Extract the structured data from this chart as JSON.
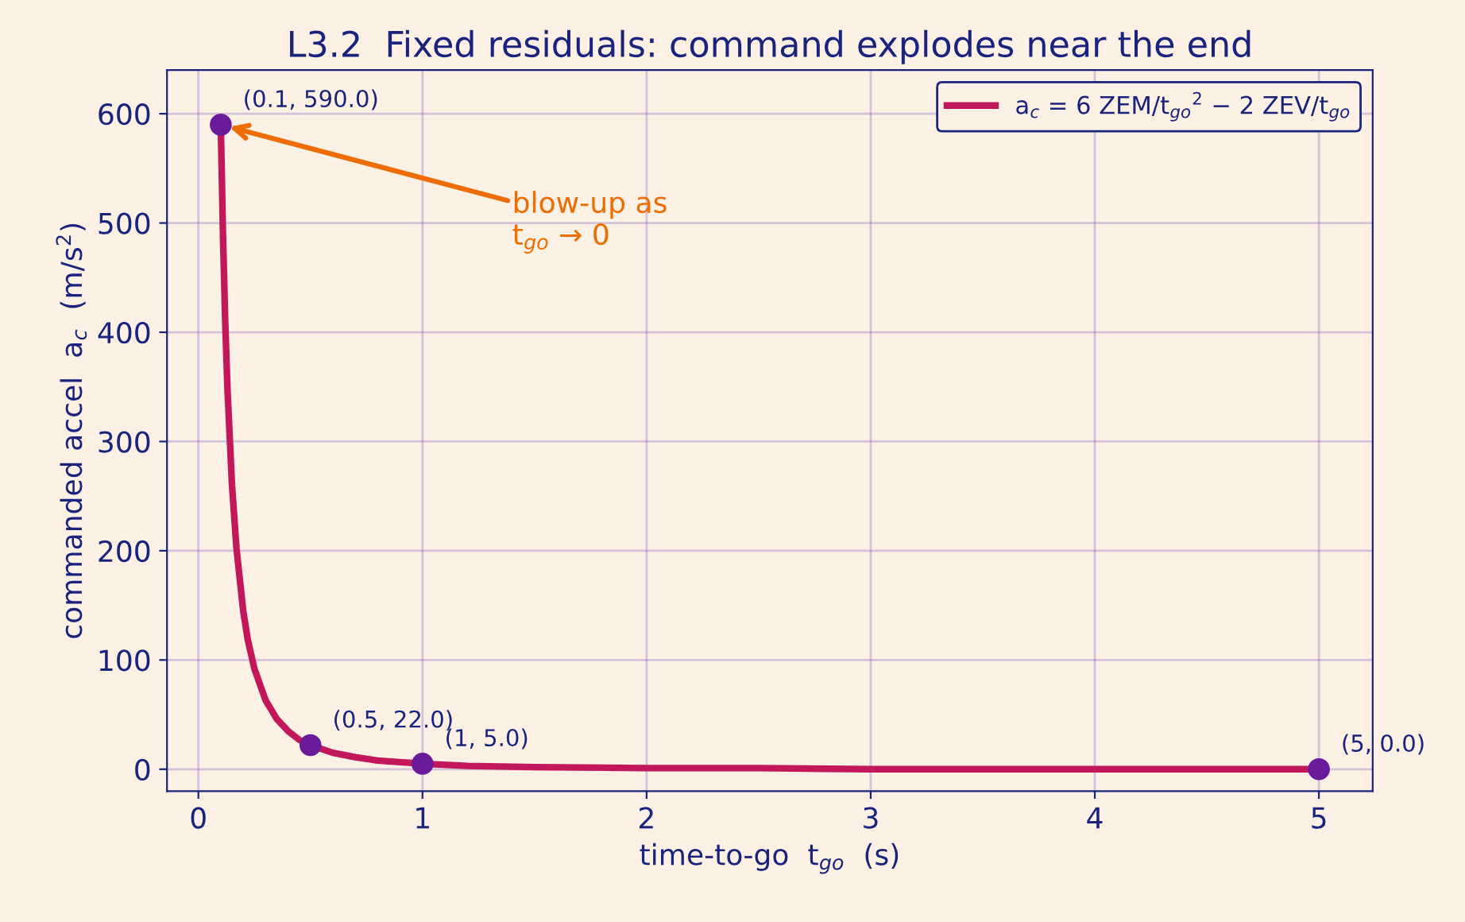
{
  "chart_data": {
    "type": "line",
    "title": "L3.2  Fixed residuals: command explodes near the end",
    "xlabel": "time-to-go  t$_{go}$  (s)",
    "ylabel": "commanded accel  a$_{c}$  (m/s$^{2}$)",
    "series": [
      {
        "name": "a$_{c}$ = 6 ZEM/t$_{go}$$^{2}$ − 2 ZEV/t$_{go}$",
        "color": "#c2185b",
        "x": [
          0.1,
          0.11,
          0.12,
          0.13,
          0.15,
          0.17,
          0.2,
          0.22,
          0.25,
          0.3,
          0.35,
          0.4,
          0.45,
          0.5,
          0.6,
          0.7,
          0.8,
          1,
          1.2,
          1.5,
          2,
          2.5,
          3,
          4,
          5
        ],
        "values": [
          590,
          487,
          408,
          347,
          260,
          202,
          145,
          119,
          92,
          63,
          46,
          35,
          27,
          22,
          15,
          11,
          8,
          5,
          3,
          2,
          1,
          1,
          0,
          0,
          0
        ]
      },
      {
        "type": "scatter",
        "marker": "circle",
        "color": "#6a1b9a",
        "x": [
          0.1,
          0.5,
          1,
          5
        ],
        "values": [
          590,
          22,
          5,
          0
        ],
        "value_labels": [
          "(0.1, 590.0)",
          "(0.5, 22.0)",
          "(1, 5.0)",
          "(5, 0.0)"
        ]
      }
    ],
    "annotations": [
      {
        "text": "blow-up as\nt$_{go}$ → 0",
        "x": 0.1,
        "y": 590
      }
    ],
    "xlim": [
      -0.14,
      5.24
    ],
    "ylim": [
      -20,
      640
    ],
    "xticks": [
      0,
      1,
      2,
      3,
      4,
      5
    ],
    "yticks": [
      0,
      100,
      200,
      300,
      400,
      500,
      600
    ],
    "grid": true,
    "legend": "top right"
  }
}
